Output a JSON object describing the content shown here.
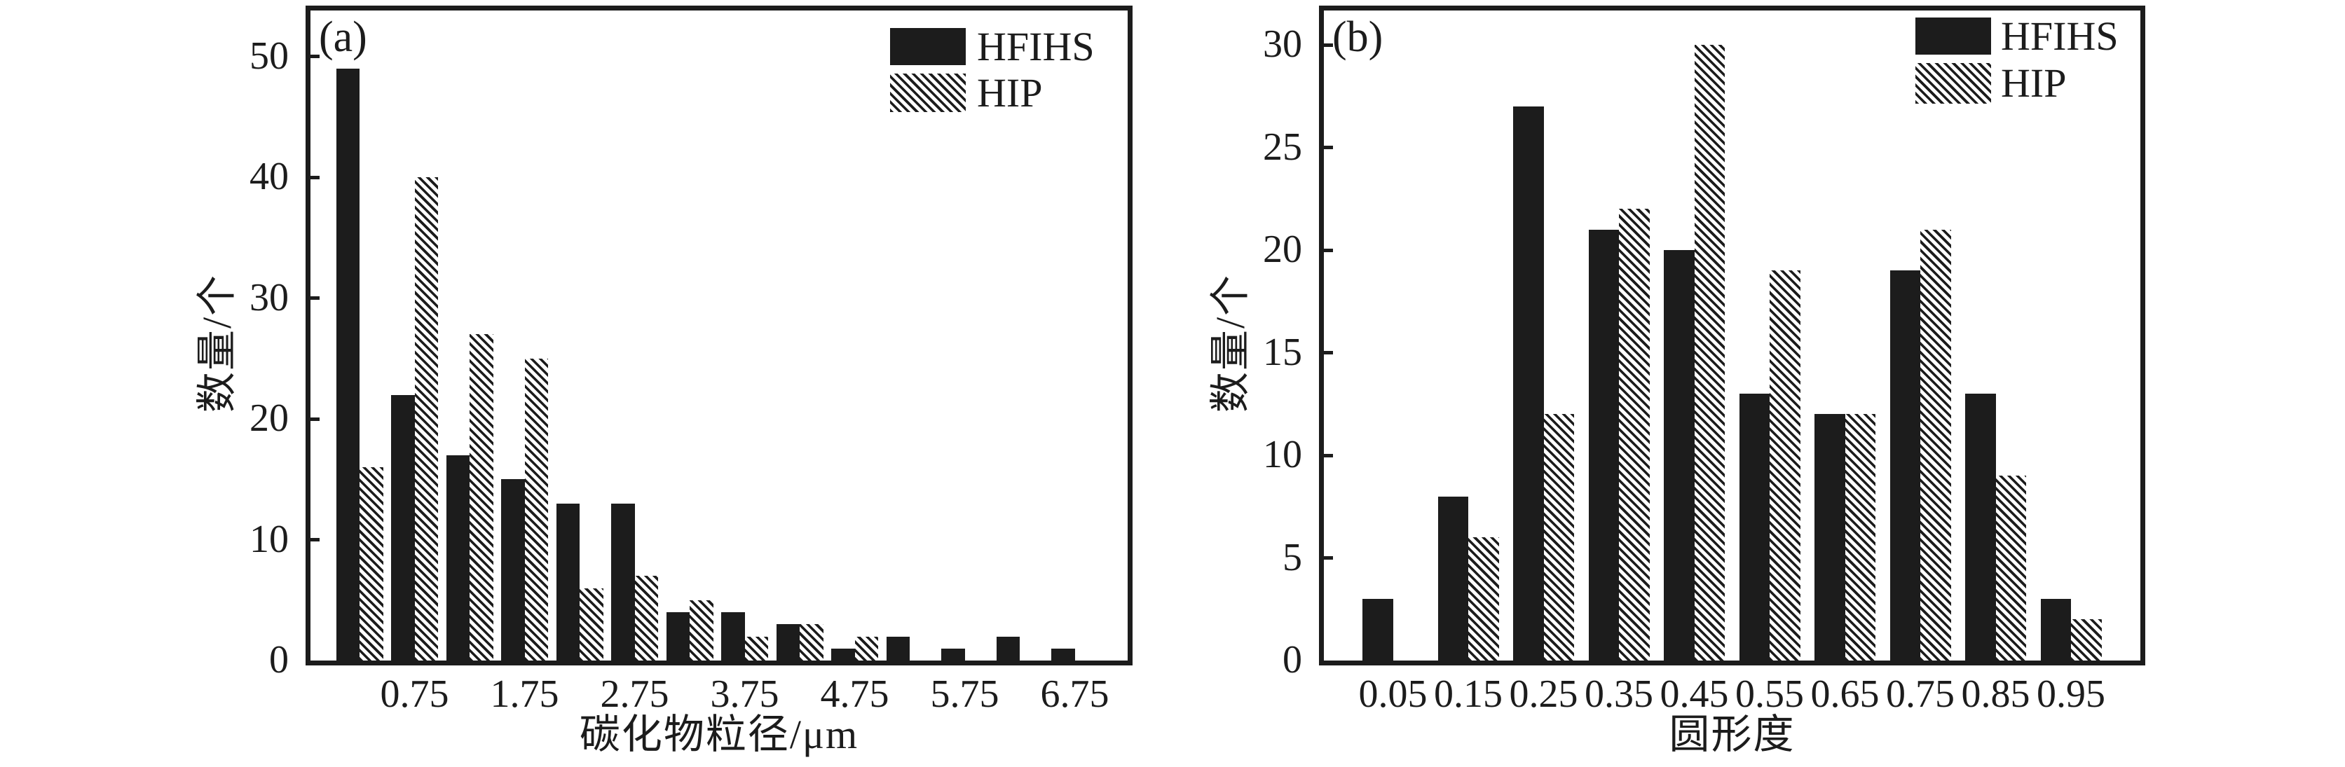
{
  "figure": {
    "background": "#ffffff",
    "ink_color": "#1c1c1c",
    "font_note": "serif"
  },
  "chart_data": [
    {
      "id": "a",
      "type": "bar",
      "panel_label": "(a)",
      "xlabel": "碳化物粒径/μm",
      "ylabel": "数量/个",
      "categories": [
        0.25,
        0.75,
        1.25,
        1.75,
        2.25,
        2.75,
        3.25,
        3.75,
        4.25,
        4.75,
        5.25,
        5.75,
        6.25,
        6.75
      ],
      "x_tick_labels": [
        "0.75",
        "1.75",
        "2.75",
        "3.75",
        "4.75",
        "5.75",
        "6.75"
      ],
      "x_tick_indices": [
        1,
        3,
        5,
        7,
        9,
        11,
        13
      ],
      "y_ticks": [
        0,
        10,
        20,
        30,
        40,
        50
      ],
      "ylim": [
        0,
        54
      ],
      "grid": false,
      "legend_position": "top-right-inside",
      "series": [
        {
          "name": "HFIHS",
          "style": "solid",
          "values": [
            49,
            22,
            17,
            15,
            13,
            13,
            4,
            4,
            3,
            1,
            2,
            1,
            2,
            1
          ]
        },
        {
          "name": "HIP",
          "style": "hatch",
          "values": [
            16,
            40,
            27,
            25,
            6,
            7,
            5,
            2,
            3,
            2,
            0,
            0,
            0,
            0
          ]
        }
      ]
    },
    {
      "id": "b",
      "type": "bar",
      "panel_label": "(b)",
      "xlabel": "圆形度",
      "ylabel": "数量/个",
      "categories": [
        0.05,
        0.15,
        0.25,
        0.35,
        0.45,
        0.55,
        0.65,
        0.75,
        0.85,
        0.95
      ],
      "x_tick_labels": [
        "0.05",
        "0.15",
        "0.25",
        "0.35",
        "0.45",
        "0.55",
        "0.65",
        "0.75",
        "0.85",
        "0.95"
      ],
      "x_tick_indices": [
        0,
        1,
        2,
        3,
        4,
        5,
        6,
        7,
        8,
        9
      ],
      "y_ticks": [
        0,
        5,
        10,
        15,
        20,
        25,
        30
      ],
      "ylim": [
        0,
        32
      ],
      "grid": false,
      "legend_position": "top-right-inside",
      "series": [
        {
          "name": "HFIHS",
          "style": "solid",
          "values": [
            3,
            8,
            27,
            21,
            20,
            13,
            12,
            19,
            13,
            3
          ]
        },
        {
          "name": "HIP",
          "style": "hatch",
          "values": [
            0,
            6,
            12,
            22,
            30,
            19,
            12,
            21,
            9,
            2
          ]
        }
      ]
    }
  ]
}
